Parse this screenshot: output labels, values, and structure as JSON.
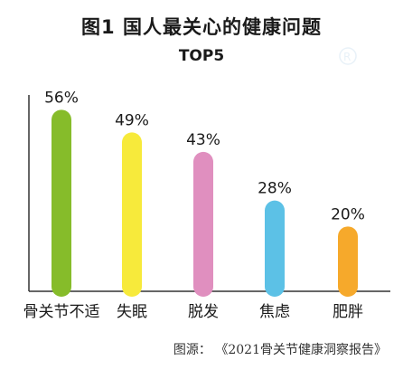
{
  "chart_data": {
    "type": "bar",
    "title": "图1 国人最关心的健康问题",
    "subtitle": "TOP5",
    "categories": [
      "骨关节不适",
      "失眠",
      "脱发",
      "焦虑",
      "肥胖"
    ],
    "values": [
      56,
      49,
      43,
      28,
      20
    ],
    "value_labels": [
      "56%",
      "49%",
      "43%",
      "28%",
      "20%"
    ],
    "colors": [
      "#86bc2a",
      "#f7ea3b",
      "#e08fbf",
      "#5cc1e6",
      "#f6a92b"
    ],
    "unit": "%",
    "ylim": [
      0,
      65
    ],
    "grid": false,
    "legend": "none"
  },
  "source": "图源： 《2021骨关节健康洞察报告》"
}
